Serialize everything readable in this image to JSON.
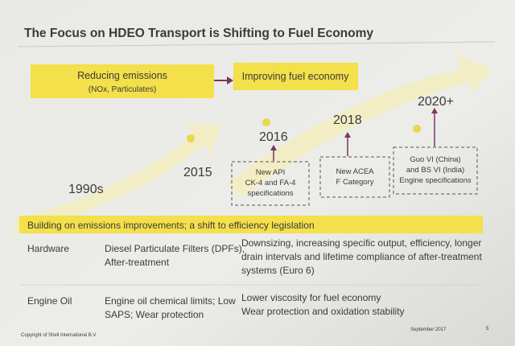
{
  "title": "The Focus on HDEO Transport is Shifting to Fuel Economy",
  "phases": [
    {
      "label": "Reducing emissions",
      "sublabel": "(NOx, Particulates)"
    },
    {
      "label": "Improving fuel economy"
    }
  ],
  "milestones": [
    {
      "year": "1990s"
    },
    {
      "year": "2015"
    },
    {
      "year": "2016",
      "note": [
        "New API",
        "CK-4 and FA-4",
        "specifications"
      ]
    },
    {
      "year": "2018",
      "note": [
        "New ACEA",
        "F Category"
      ]
    },
    {
      "year": "2020+",
      "note": [
        "Guo VI (China)",
        "and BS VI (India)",
        "Engine specifications"
      ]
    }
  ],
  "banner": "Building on emissions improvements; a shift to efficiency legislation",
  "table": {
    "rows": [
      [
        [
          "Hardware"
        ],
        [
          "Diesel Particulate Filters (DPFs),",
          "After-treatment"
        ],
        [
          "Downsizing, increasing specific output, efficiency, longer",
          "drain intervals and lifetime compliance of after-treatment",
          "systems (Euro 6)"
        ]
      ],
      [
        [
          "Engine Oil"
        ],
        [
          "Engine oil chemical limits; Low",
          "SAPS; Wear protection"
        ],
        [
          "Lower viscosity for fuel economy",
          "Wear protection and oxidation stability"
        ]
      ]
    ]
  },
  "footer": {
    "copyright": "Copyright of Shell International B.V.",
    "date": "September 2017",
    "page": "5"
  }
}
